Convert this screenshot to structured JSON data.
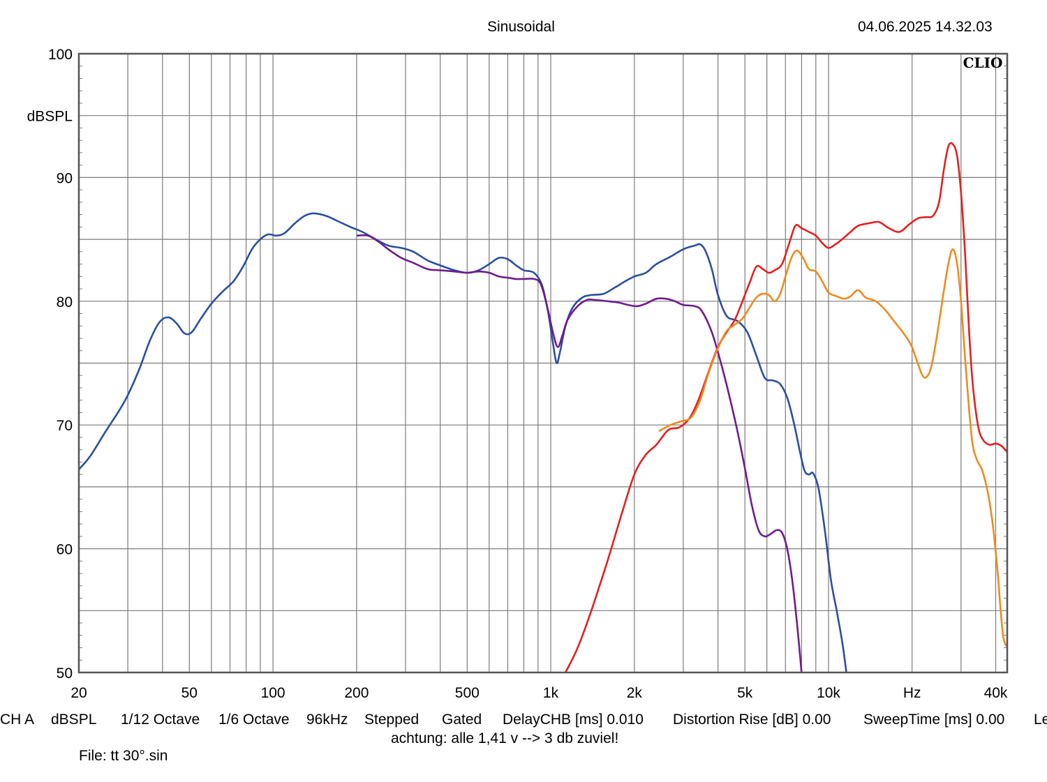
{
  "header": {
    "title": "Sinusoidal",
    "timestamp": "04.06.2025 14.32.03",
    "brand": "CLIO"
  },
  "footer": {
    "settings": [
      "CH A",
      "dBSPL",
      "1/12 Octave",
      "1/6 Octave",
      "96kHz",
      "Stepped",
      "Gated",
      "DelayCHB [ms] 0.010",
      "Distortion Rise [dB] 0.00",
      "SweepTime [ms] 0.00",
      "Le"
    ],
    "note": "achtung: alle 1,41 v --> 3 db zuviel!",
    "file": "File: tt 30°.sin"
  },
  "colors": {
    "blue": "#2a4f9e",
    "purple": "#6e1b8e",
    "red": "#e41f1f",
    "orange": "#f08a1c",
    "grid": "#7a7a7a",
    "frame": "#555555"
  },
  "chart_data": {
    "type": "line",
    "title": "Sinusoidal",
    "xlabel": "Hz",
    "ylabel": "dBSPL",
    "xscale": "log",
    "xlim": [
      20,
      44000
    ],
    "ylim": [
      50,
      100
    ],
    "grid": true,
    "x_ticks": [
      {
        "value": 20,
        "label": "20"
      },
      {
        "value": 50,
        "label": "50"
      },
      {
        "value": 100,
        "label": "100"
      },
      {
        "value": 200,
        "label": "200"
      },
      {
        "value": 500,
        "label": "500"
      },
      {
        "value": 1000,
        "label": "1k"
      },
      {
        "value": 2000,
        "label": "2k"
      },
      {
        "value": 5000,
        "label": "5k"
      },
      {
        "value": 10000,
        "label": "10k"
      },
      {
        "value": 20000,
        "label": "Hz"
      },
      {
        "value": 40000,
        "label": "40k"
      }
    ],
    "y_ticks": [
      {
        "value": 100,
        "label": "100"
      },
      {
        "value": 95,
        "label": "dBSPL"
      },
      {
        "value": 90,
        "label": "90"
      },
      {
        "value": 80,
        "label": "80"
      },
      {
        "value": 70,
        "label": "70"
      },
      {
        "value": 60,
        "label": "60"
      },
      {
        "value": 50,
        "label": "50"
      }
    ],
    "series": [
      {
        "name": "blue",
        "color": "#2a4f9e",
        "points": [
          [
            20,
            66.4
          ],
          [
            22,
            67.5
          ],
          [
            25,
            69.5
          ],
          [
            28,
            71.2
          ],
          [
            30,
            72.4
          ],
          [
            33,
            74.5
          ],
          [
            36,
            76.8
          ],
          [
            39,
            78.3
          ],
          [
            42,
            78.7
          ],
          [
            45,
            78.2
          ],
          [
            48,
            77.4
          ],
          [
            51,
            77.5
          ],
          [
            55,
            78.6
          ],
          [
            60,
            79.8
          ],
          [
            66,
            80.8
          ],
          [
            72,
            81.6
          ],
          [
            78,
            82.8
          ],
          [
            84,
            84.2
          ],
          [
            90,
            85.0
          ],
          [
            96,
            85.4
          ],
          [
            103,
            85.3
          ],
          [
            110,
            85.5
          ],
          [
            120,
            86.3
          ],
          [
            130,
            86.9
          ],
          [
            140,
            87.1
          ],
          [
            155,
            86.9
          ],
          [
            170,
            86.5
          ],
          [
            190,
            86.0
          ],
          [
            210,
            85.6
          ],
          [
            230,
            85.1
          ],
          [
            260,
            84.5
          ],
          [
            290,
            84.3
          ],
          [
            320,
            84.0
          ],
          [
            360,
            83.3
          ],
          [
            400,
            82.9
          ],
          [
            450,
            82.5
          ],
          [
            500,
            82.3
          ],
          [
            550,
            82.5
          ],
          [
            600,
            83.0
          ],
          [
            650,
            83.5
          ],
          [
            700,
            83.4
          ],
          [
            750,
            82.9
          ],
          [
            800,
            82.5
          ],
          [
            870,
            82.3
          ],
          [
            930,
            81.3
          ],
          [
            980,
            79.0
          ],
          [
            1020,
            76.5
          ],
          [
            1050,
            75.0
          ],
          [
            1080,
            75.9
          ],
          [
            1130,
            78.0
          ],
          [
            1200,
            79.5
          ],
          [
            1300,
            80.3
          ],
          [
            1400,
            80.5
          ],
          [
            1550,
            80.6
          ],
          [
            1700,
            81.1
          ],
          [
            1850,
            81.6
          ],
          [
            2000,
            82.0
          ],
          [
            2200,
            82.3
          ],
          [
            2400,
            83.0
          ],
          [
            2700,
            83.6
          ],
          [
            3000,
            84.2
          ],
          [
            3300,
            84.5
          ],
          [
            3450,
            84.6
          ],
          [
            3600,
            84.1
          ],
          [
            3800,
            82.6
          ],
          [
            4000,
            80.5
          ],
          [
            4300,
            78.8
          ],
          [
            4700,
            78.4
          ],
          [
            5100,
            77.5
          ],
          [
            5500,
            75.6
          ],
          [
            5900,
            73.8
          ],
          [
            6300,
            73.6
          ],
          [
            6700,
            73.3
          ],
          [
            7100,
            72.2
          ],
          [
            7500,
            70.2
          ],
          [
            7900,
            67.8
          ],
          [
            8200,
            66.3
          ],
          [
            8500,
            66.0
          ],
          [
            8800,
            66.1
          ],
          [
            9200,
            64.9
          ],
          [
            9700,
            61.5
          ],
          [
            10200,
            57.5
          ],
          [
            10700,
            55.0
          ],
          [
            11200,
            52.5
          ],
          [
            11600,
            50.0
          ]
        ]
      },
      {
        "name": "purple",
        "color": "#6e1b8e",
        "points": [
          [
            200,
            85.3
          ],
          [
            220,
            85.3
          ],
          [
            240,
            84.8
          ],
          [
            260,
            84.2
          ],
          [
            290,
            83.5
          ],
          [
            320,
            83.1
          ],
          [
            360,
            82.6
          ],
          [
            400,
            82.5
          ],
          [
            450,
            82.4
          ],
          [
            500,
            82.3
          ],
          [
            550,
            82.4
          ],
          [
            600,
            82.3
          ],
          [
            650,
            82.0
          ],
          [
            700,
            81.9
          ],
          [
            750,
            81.8
          ],
          [
            800,
            81.8
          ],
          [
            870,
            81.8
          ],
          [
            920,
            81.4
          ],
          [
            970,
            79.6
          ],
          [
            1020,
            77.4
          ],
          [
            1060,
            76.3
          ],
          [
            1100,
            77.2
          ],
          [
            1150,
            78.5
          ],
          [
            1250,
            79.6
          ],
          [
            1350,
            80.1
          ],
          [
            1450,
            80.1
          ],
          [
            1600,
            80.0
          ],
          [
            1750,
            79.9
          ],
          [
            1900,
            79.7
          ],
          [
            2050,
            79.6
          ],
          [
            2200,
            79.8
          ],
          [
            2400,
            80.2
          ],
          [
            2600,
            80.2
          ],
          [
            2800,
            80.0
          ],
          [
            3000,
            79.7
          ],
          [
            3300,
            79.6
          ],
          [
            3500,
            79.2
          ],
          [
            3800,
            77.5
          ],
          [
            4100,
            75.0
          ],
          [
            4400,
            72.3
          ],
          [
            4700,
            69.5
          ],
          [
            5000,
            66.5
          ],
          [
            5300,
            63.5
          ],
          [
            5600,
            61.5
          ],
          [
            5900,
            61.0
          ],
          [
            6200,
            61.2
          ],
          [
            6500,
            61.5
          ],
          [
            6800,
            61.3
          ],
          [
            7100,
            60.0
          ],
          [
            7400,
            57.5
          ],
          [
            7700,
            54.0
          ],
          [
            8000,
            50.0
          ]
        ]
      },
      {
        "name": "red",
        "color": "#e41f1f",
        "points": [
          [
            1130,
            50.0
          ],
          [
            1250,
            52.0
          ],
          [
            1400,
            55.0
          ],
          [
            1600,
            59.0
          ],
          [
            1800,
            62.8
          ],
          [
            2000,
            66.0
          ],
          [
            2200,
            67.6
          ],
          [
            2400,
            68.4
          ],
          [
            2650,
            69.6
          ],
          [
            2900,
            69.8
          ],
          [
            3150,
            70.5
          ],
          [
            3400,
            72.0
          ],
          [
            3700,
            74.3
          ],
          [
            4000,
            76.3
          ],
          [
            4300,
            77.5
          ],
          [
            4600,
            78.5
          ],
          [
            4900,
            80.0
          ],
          [
            5200,
            81.5
          ],
          [
            5500,
            82.8
          ],
          [
            5800,
            82.6
          ],
          [
            6100,
            82.3
          ],
          [
            6400,
            82.5
          ],
          [
            6800,
            83.0
          ],
          [
            7200,
            84.6
          ],
          [
            7600,
            86.1
          ],
          [
            8000,
            85.9
          ],
          [
            8500,
            85.6
          ],
          [
            9000,
            85.3
          ],
          [
            9500,
            84.7
          ],
          [
            10000,
            84.3
          ],
          [
            10600,
            84.6
          ],
          [
            11200,
            85.0
          ],
          [
            12000,
            85.6
          ],
          [
            12800,
            86.1
          ],
          [
            14000,
            86.3
          ],
          [
            15200,
            86.4
          ],
          [
            16500,
            85.9
          ],
          [
            18000,
            85.6
          ],
          [
            19500,
            86.2
          ],
          [
            21000,
            86.7
          ],
          [
            22500,
            86.8
          ],
          [
            23800,
            86.9
          ],
          [
            25000,
            88.0
          ],
          [
            26000,
            90.6
          ],
          [
            27000,
            92.5
          ],
          [
            28000,
            92.7
          ],
          [
            29000,
            91.8
          ],
          [
            30000,
            88.8
          ],
          [
            31000,
            84.0
          ],
          [
            32000,
            78.0
          ],
          [
            33000,
            73.5
          ],
          [
            34500,
            70.0
          ],
          [
            36000,
            68.8
          ],
          [
            38000,
            68.4
          ],
          [
            40000,
            68.5
          ],
          [
            42000,
            68.3
          ],
          [
            44000,
            67.8
          ]
        ]
      },
      {
        "name": "orange",
        "color": "#f08a1c",
        "points": [
          [
            2450,
            69.5
          ],
          [
            2700,
            70.0
          ],
          [
            2950,
            70.3
          ],
          [
            3200,
            70.6
          ],
          [
            3450,
            72.0
          ],
          [
            3700,
            74.2
          ],
          [
            4000,
            76.2
          ],
          [
            4300,
            77.6
          ],
          [
            4600,
            78.1
          ],
          [
            4900,
            78.6
          ],
          [
            5200,
            79.5
          ],
          [
            5500,
            80.3
          ],
          [
            5800,
            80.6
          ],
          [
            6100,
            80.5
          ],
          [
            6400,
            80.0
          ],
          [
            6700,
            80.6
          ],
          [
            7000,
            82.0
          ],
          [
            7350,
            83.5
          ],
          [
            7700,
            84.1
          ],
          [
            8100,
            83.5
          ],
          [
            8500,
            82.6
          ],
          [
            9000,
            82.4
          ],
          [
            9500,
            81.6
          ],
          [
            10000,
            80.7
          ],
          [
            10700,
            80.4
          ],
          [
            11400,
            80.2
          ],
          [
            12000,
            80.4
          ],
          [
            12800,
            80.9
          ],
          [
            13600,
            80.3
          ],
          [
            14800,
            80.0
          ],
          [
            16000,
            79.3
          ],
          [
            17200,
            78.4
          ],
          [
            18500,
            77.5
          ],
          [
            19800,
            76.5
          ],
          [
            20800,
            75.2
          ],
          [
            21800,
            74.0
          ],
          [
            22600,
            73.9
          ],
          [
            23500,
            74.8
          ],
          [
            24700,
            77.5
          ],
          [
            26000,
            80.8
          ],
          [
            27000,
            83.0
          ],
          [
            28000,
            84.2
          ],
          [
            29000,
            83.1
          ],
          [
            30000,
            80.0
          ],
          [
            31000,
            75.5
          ],
          [
            32000,
            71.5
          ],
          [
            33000,
            68.5
          ],
          [
            34200,
            67.2
          ],
          [
            35800,
            66.3
          ],
          [
            37500,
            64.5
          ],
          [
            39000,
            62.0
          ],
          [
            40500,
            58.5
          ],
          [
            41500,
            55.5
          ],
          [
            42500,
            53.0
          ],
          [
            43500,
            52.2
          ],
          [
            44000,
            52.3
          ]
        ]
      }
    ]
  }
}
